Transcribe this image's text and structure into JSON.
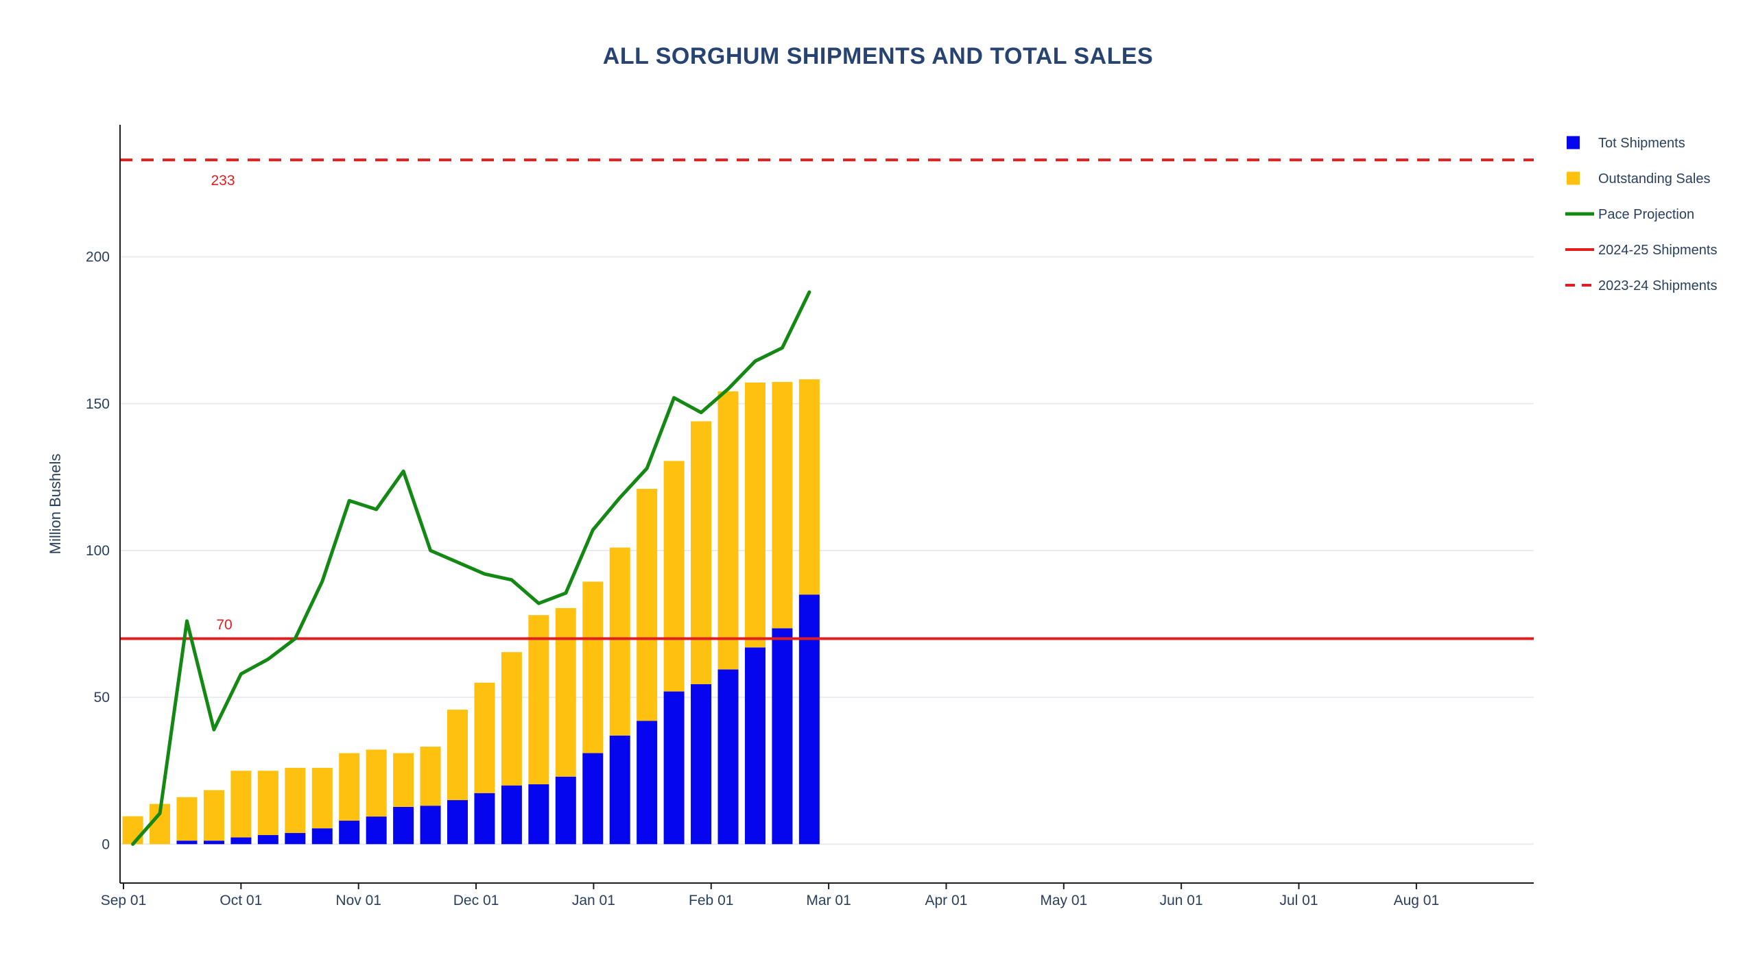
{
  "chart_data": {
    "type": "bar",
    "subtype": "stacked-bars-with-line-overlays",
    "title": "ALL SORGHUM SHIPMENTS AND TOTAL SALES",
    "ylabel": "Million Bushels",
    "xlabel": "",
    "y_ticks": [
      0,
      50,
      100,
      150,
      200
    ],
    "ylim": [
      -13,
      245
    ],
    "x_tick_labels": [
      "Sep 01",
      "Oct 01",
      "Nov 01",
      "Dec 01",
      "Jan 01",
      "Feb 01",
      "Mar 01",
      "Apr 01",
      "May 01",
      "Jun 01",
      "Jul 01",
      "Aug 01"
    ],
    "x_range_months": 12,
    "grid": "horizontal-only",
    "categories": [
      "Sep 03",
      "Sep 10",
      "Sep 17",
      "Sep 24",
      "Oct 01",
      "Oct 08",
      "Oct 15",
      "Oct 22",
      "Oct 29",
      "Nov 05",
      "Nov 12",
      "Nov 19",
      "Nov 26",
      "Dec 03",
      "Dec 10",
      "Dec 17",
      "Dec 24",
      "Dec 31",
      "Jan 07",
      "Jan 14",
      "Jan 21",
      "Jan 28",
      "Feb 04",
      "Feb 11",
      "Feb 18",
      "Feb 25"
    ],
    "series": [
      {
        "name": "Tot Shipments",
        "type": "bar-stack-bottom",
        "color_key": "blue",
        "values": [
          0,
          0,
          1.2,
          1.2,
          2.3,
          3.1,
          3.8,
          5.4,
          8,
          9.4,
          12.7,
          13.1,
          15,
          17.4,
          20,
          20.4,
          23,
          31,
          37,
          42,
          52,
          54.5,
          59.5,
          67,
          73.5,
          85
        ]
      },
      {
        "name": "Outstanding Sales",
        "type": "bar-stack-top",
        "color_key": "yellow",
        "values": [
          9.5,
          13.7,
          14.8,
          17.2,
          22.7,
          21.9,
          22.2,
          20.6,
          23,
          22.8,
          18.3,
          20.1,
          30.8,
          37.6,
          45.4,
          57.6,
          57.4,
          58.4,
          64,
          79,
          78.5,
          89.5,
          94.7,
          90.2,
          83.9,
          73.3
        ]
      },
      {
        "name": "Pace Projection",
        "type": "line",
        "color_key": "green",
        "values": [
          0,
          10.5,
          76,
          39,
          58,
          63,
          70,
          89.5,
          117,
          114,
          127,
          100,
          96,
          92,
          90,
          82,
          85.5,
          107,
          118,
          128,
          152,
          147,
          155,
          164.5,
          169,
          188
        ]
      },
      {
        "name": "2024-25 Shipments",
        "type": "hline",
        "style": "solid",
        "color_key": "red",
        "value": 70
      },
      {
        "name": "2023-24 Shipments",
        "type": "hline",
        "style": "dashed",
        "color_key": "red",
        "value": 233
      }
    ],
    "annotations": [
      {
        "text": "233",
        "color_key": "red",
        "attached_to": "2023-24 Shipments",
        "placement": "below-line-left"
      },
      {
        "text": "70",
        "color_key": "red",
        "attached_to": "2024-25 Shipments",
        "placement": "above-line-left"
      }
    ],
    "legend": {
      "position": "right",
      "items": [
        {
          "label": "Tot Shipments",
          "swatch": "square",
          "color_key": "blue"
        },
        {
          "label": "Outstanding Sales",
          "swatch": "square",
          "color_key": "yellow"
        },
        {
          "label": "Pace Projection",
          "swatch": "line",
          "color_key": "green"
        },
        {
          "label": "2024-25 Shipments",
          "swatch": "line",
          "color_key": "red"
        },
        {
          "label": "2023-24 Shipments",
          "swatch": "dashed-line",
          "color_key": "red"
        }
      ]
    },
    "colors": {
      "blue": "#0505EE",
      "yellow": "#FFC110",
      "green": "#138813",
      "red": "#DF1F1F",
      "text": "#2A3F5F",
      "title": "#274372",
      "grid": "#E9EBF1",
      "axis": "#1C1C1C",
      "background": "#FFFFFF"
    }
  }
}
